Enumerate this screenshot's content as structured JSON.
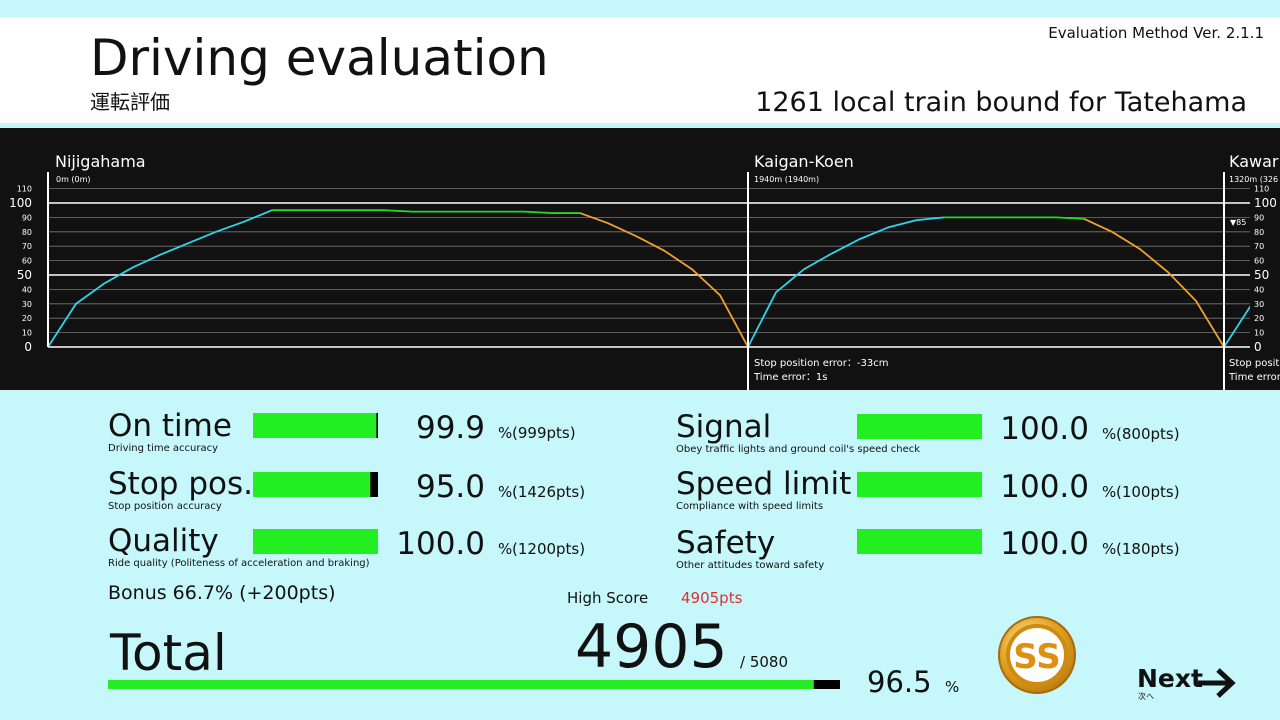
{
  "header": {
    "title": "Driving evaluation",
    "subtitle": "運転評価",
    "version": "Evaluation Method  Ver. 2.1.1",
    "train": "1261 local train bound for Tatehama"
  },
  "speed_graph": {
    "ylim": [
      0,
      110
    ],
    "yticks": [
      0,
      10,
      20,
      30,
      40,
      50,
      60,
      70,
      80,
      90,
      100,
      110
    ],
    "stations": [
      {
        "name": "Nijigahama",
        "distance": "0m (0m)"
      },
      {
        "name": "Kaigan-Koen",
        "distance": "1940m (1940m)",
        "stop_error": "Stop position error：-33cm",
        "time_error": "Time error：1s"
      },
      {
        "name": "Kawar",
        "distance": "1320m (326",
        "stop_error": "Stop posit",
        "time_error": "Time error",
        "limit_marker": "▼85"
      }
    ],
    "series": [
      {
        "color": "#2fd6e8",
        "values": [
          0,
          30,
          44,
          55,
          64,
          72,
          80,
          87,
          95,
          null,
          null,
          null,
          null,
          null,
          null,
          null,
          null,
          null,
          null,
          null,
          null,
          null,
          null,
          null,
          null,
          0,
          38,
          54,
          65,
          75,
          83,
          88,
          90,
          null,
          null,
          null,
          null,
          null,
          null,
          null,
          null,
          null,
          0,
          30
        ]
      },
      {
        "color": "#22d822",
        "values": [
          null,
          null,
          null,
          null,
          null,
          null,
          null,
          null,
          95,
          95,
          95,
          95,
          95,
          94,
          94,
          94,
          94,
          94,
          93,
          93,
          null,
          null,
          null,
          null,
          null,
          null,
          null,
          null,
          null,
          null,
          null,
          null,
          90,
          90,
          90,
          90,
          90,
          89,
          null,
          null,
          null,
          null,
          null,
          null
        ]
      },
      {
        "color": "#f0a030",
        "values": [
          null,
          null,
          null,
          null,
          null,
          null,
          null,
          null,
          null,
          null,
          null,
          null,
          null,
          null,
          null,
          null,
          null,
          null,
          null,
          93,
          86,
          77,
          67,
          54,
          36,
          0,
          null,
          null,
          null,
          null,
          null,
          null,
          null,
          null,
          null,
          null,
          null,
          89,
          80,
          68,
          52,
          32,
          0,
          null
        ]
      }
    ]
  },
  "scores": [
    {
      "label": "On time",
      "sub": "Driving time accuracy",
      "percent": {
        "value": 99.9,
        "label": "99.9"
      },
      "unit": "%",
      "points": "(999pts)"
    },
    {
      "label": "Stop pos.",
      "sub": "Stop position accuracy",
      "percent": {
        "value": 95.0,
        "label": "95.0"
      },
      "unit": "%",
      "points": "(1426pts)"
    },
    {
      "label": "Quality",
      "sub": "Ride quality (Politeness of acceleration and braking)",
      "percent": {
        "value": 100,
        "label": "100.0"
      },
      "unit": "%",
      "points": "(1200pts)"
    },
    {
      "label": "Signal",
      "sub": "Obey traffic lights and ground coil's speed check",
      "percent": {
        "value": 100,
        "label": "100.0"
      },
      "unit": "%",
      "points": "(800pts)"
    },
    {
      "label": "Speed limit",
      "sub": "Compliance with speed limits",
      "percent": {
        "value": 100,
        "label": "100.0"
      },
      "unit": "%",
      "points": "(100pts)"
    },
    {
      "label": "Safety",
      "sub": "Other attitudes toward safety",
      "percent": {
        "value": 100,
        "label": "100.0"
      },
      "unit": "%",
      "points": "(180pts)"
    }
  ],
  "bonus": "Bonus 66.7% (+200pts)",
  "high_score": {
    "label": "High Score",
    "value": "4905pts"
  },
  "total": {
    "label": "Total",
    "score": 4905,
    "max": {
      "value": 5080,
      "label": "/ 5080"
    },
    "percent": {
      "value": 96.5,
      "label": "96.5"
    },
    "unit": "%",
    "rank": "SS"
  },
  "next": {
    "label": "Next",
    "sub": "次へ"
  }
}
